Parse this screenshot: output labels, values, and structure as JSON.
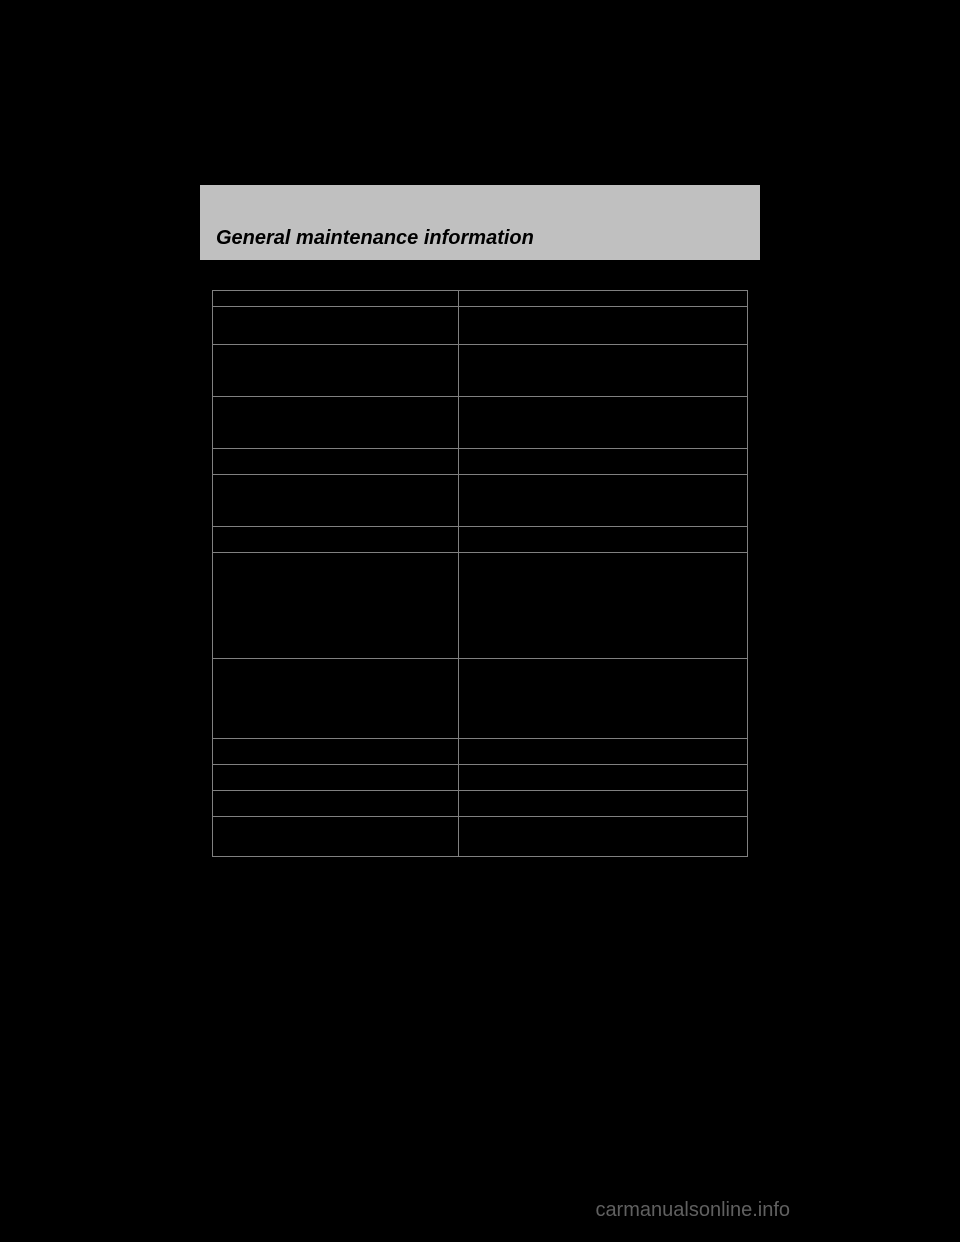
{
  "header": {
    "title": "General maintenance information"
  },
  "table": {
    "rows": [
      {
        "col1_height": 16,
        "col2_height": 16
      },
      {
        "col1_height": 38,
        "col2_height": 38
      },
      {
        "col1_height": 52,
        "col2_height": 52
      },
      {
        "col1_height": 52,
        "col2_height": 52
      },
      {
        "col1_height": 26,
        "col2_height": 26
      },
      {
        "col1_height": 52,
        "col2_height": 52
      },
      {
        "col1_height": 26,
        "col2_height": 26
      },
      {
        "col1_height": 106,
        "col2_height": 106
      },
      {
        "col1_height": 80,
        "col2_height": 80
      },
      {
        "col1_height": 26,
        "col2_height": 26
      },
      {
        "col1_height": 26,
        "col2_height": 26
      },
      {
        "col1_height": 26,
        "col2_height": 26
      },
      {
        "col1_height": 40,
        "col2_height": 40
      }
    ]
  },
  "watermark": {
    "text": "carmanualsonline.info"
  },
  "colors": {
    "background": "#000000",
    "header_bg": "#c0c0c0",
    "border": "#808080",
    "text": "#000000",
    "watermark": "#606060"
  }
}
